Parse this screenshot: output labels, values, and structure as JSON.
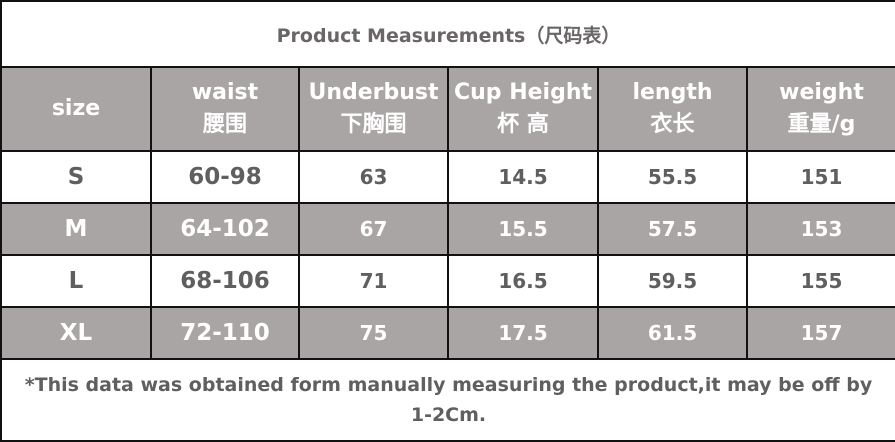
{
  "title": "Product Measurements（尺码表）",
  "headers": [
    {
      "en": "size",
      "zh": ""
    },
    {
      "en": "waist",
      "zh": "腰围"
    },
    {
      "en": "Underbust",
      "zh": "下胸围"
    },
    {
      "en": "Cup Height",
      "zh": "杯 高"
    },
    {
      "en": "length",
      "zh": "衣长"
    },
    {
      "en": "weight",
      "zh": "重量/g"
    }
  ],
  "rows": [
    [
      "S",
      "60-98",
      "63",
      "14.5",
      "55.5",
      "151"
    ],
    [
      "M",
      "64-102",
      "67",
      "15.5",
      "57.5",
      "153"
    ],
    [
      "L",
      "68-106",
      "71",
      "16.5",
      "59.5",
      "155"
    ],
    [
      "XL",
      "72-110",
      "75",
      "17.5",
      "61.5",
      "157"
    ]
  ],
  "footnote": "*This data was obtained form manually measuring the product,it may be off by 1-2Cm.",
  "colors": {
    "header_bg": "#a9a5a4",
    "text": "#5f5f5f"
  }
}
